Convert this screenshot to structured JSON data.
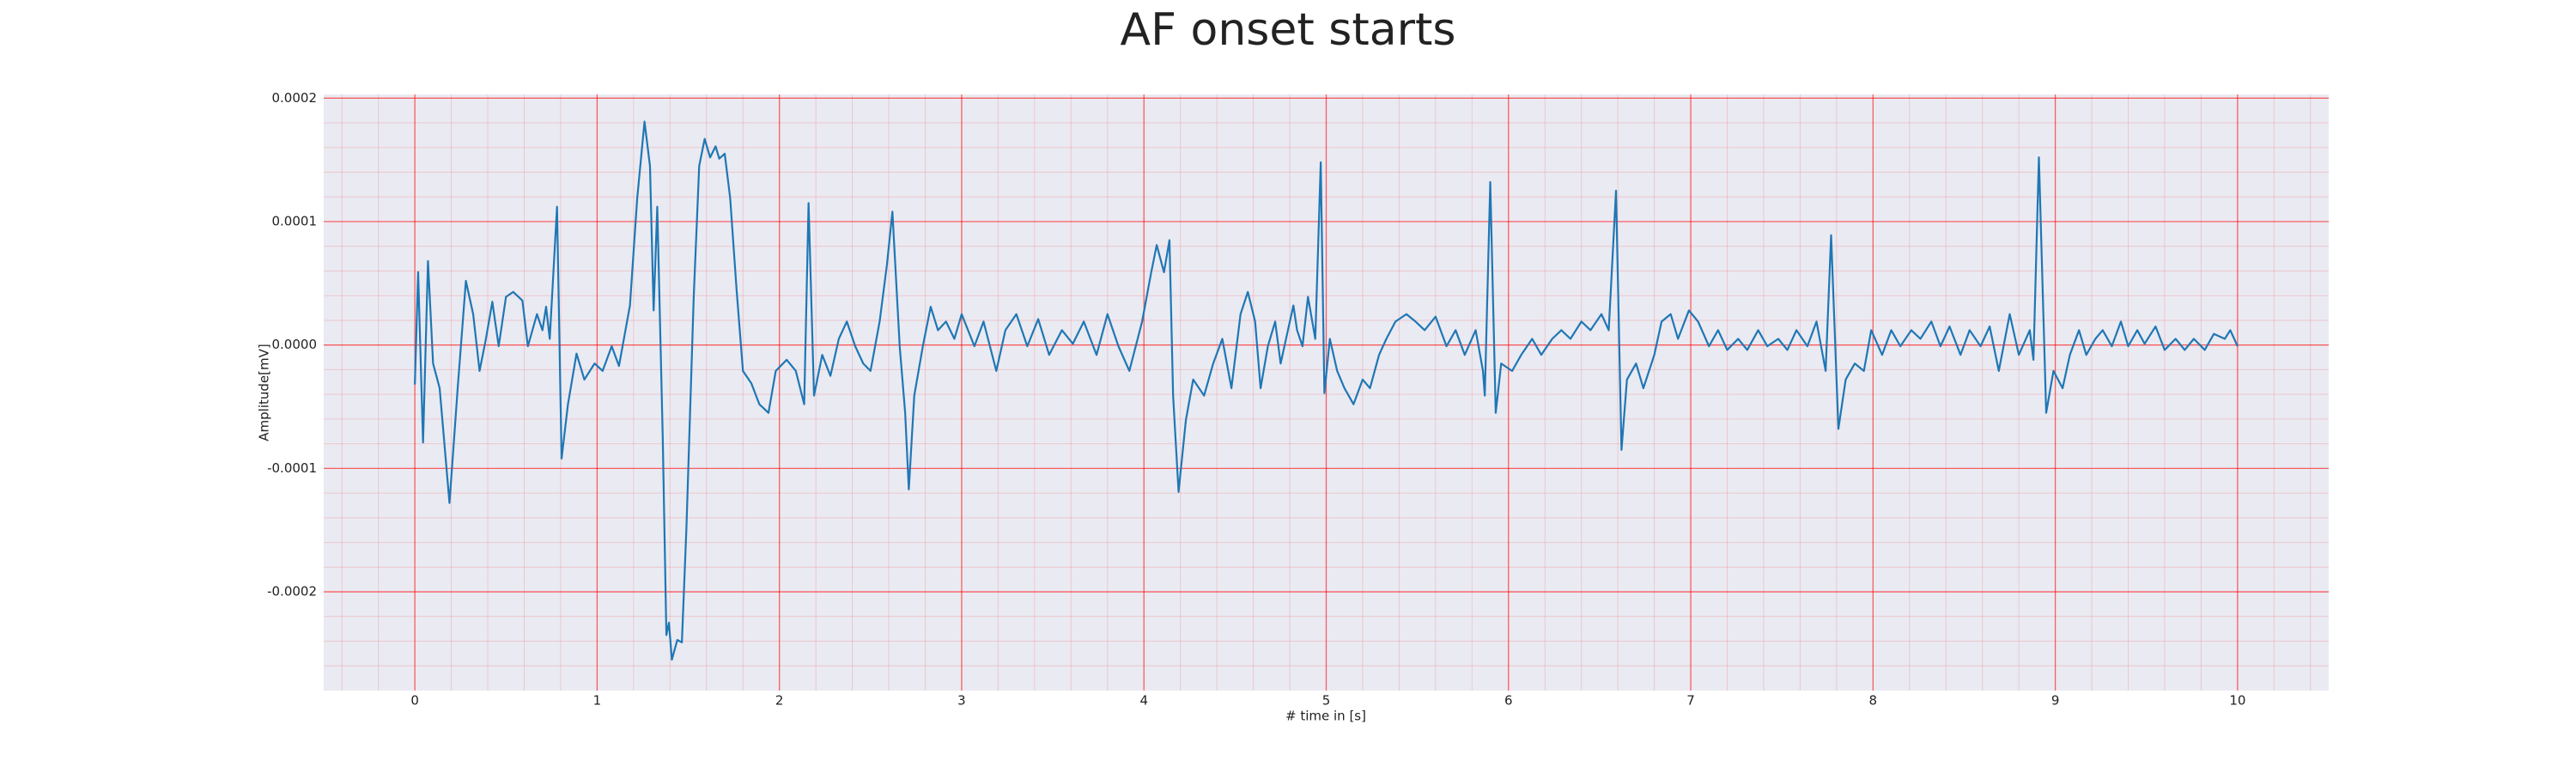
{
  "chart_data": {
    "type": "line",
    "title": "AF onset starts",
    "xlabel": "# time in [s]",
    "ylabel": "Amplitude[mV]",
    "x": [
      0,
      0.018,
      0.045,
      0.072,
      0.1,
      0.136,
      0.19,
      0.235,
      0.28,
      0.32,
      0.355,
      0.39,
      0.425,
      0.46,
      0.5,
      0.54,
      0.59,
      0.62,
      0.67,
      0.7,
      0.72,
      0.74,
      0.78,
      0.805,
      0.84,
      0.887,
      0.93,
      0.986,
      1.03,
      1.08,
      1.12,
      1.18,
      1.22,
      1.26,
      1.29,
      1.31,
      1.33,
      1.36,
      1.38,
      1.394,
      1.41,
      1.44,
      1.465,
      1.49,
      1.53,
      1.56,
      1.59,
      1.62,
      1.65,
      1.67,
      1.7,
      1.73,
      1.765,
      1.8,
      1.846,
      1.89,
      1.94,
      1.98,
      2.04,
      2.09,
      2.136,
      2.16,
      2.19,
      2.235,
      2.28,
      2.326,
      2.37,
      2.416,
      2.46,
      2.5,
      2.55,
      2.59,
      2.62,
      2.66,
      2.69,
      2.71,
      2.74,
      2.787,
      2.83,
      2.87,
      2.914,
      2.96,
      3.0,
      3.07,
      3.12,
      3.19,
      3.24,
      3.3,
      3.36,
      3.42,
      3.48,
      3.55,
      3.61,
      3.67,
      3.74,
      3.8,
      3.86,
      3.92,
      3.99,
      4.04,
      4.07,
      4.11,
      4.14,
      4.16,
      4.19,
      4.23,
      4.27,
      4.33,
      4.38,
      4.43,
      4.48,
      4.53,
      4.57,
      4.61,
      4.64,
      4.68,
      4.72,
      4.75,
      4.79,
      4.82,
      4.84,
      4.87,
      4.9,
      4.94,
      4.97,
      4.99,
      5.02,
      5.06,
      5.1,
      5.15,
      5.2,
      5.24,
      5.29,
      5.33,
      5.38,
      5.44,
      5.49,
      5.54,
      5.6,
      5.66,
      5.71,
      5.76,
      5.82,
      5.86,
      5.87,
      5.9,
      5.93,
      5.96,
      6.02,
      6.07,
      6.13,
      6.18,
      6.24,
      6.29,
      6.34,
      6.4,
      6.45,
      6.51,
      6.55,
      6.59,
      6.62,
      6.65,
      6.7,
      6.74,
      6.8,
      6.84,
      6.89,
      6.93,
      6.99,
      7.04,
      7.1,
      7.15,
      7.2,
      7.26,
      7.31,
      7.37,
      7.42,
      7.48,
      7.53,
      7.58,
      7.64,
      7.69,
      7.74,
      7.77,
      7.81,
      7.85,
      7.9,
      7.95,
      7.99,
      8.05,
      8.1,
      8.15,
      8.21,
      8.26,
      8.32,
      8.37,
      8.42,
      8.48,
      8.53,
      8.59,
      8.64,
      8.69,
      8.75,
      8.8,
      8.86,
      8.88,
      8.91,
      8.95,
      8.99,
      9.04,
      9.08,
      9.13,
      9.17,
      9.22,
      9.26,
      9.31,
      9.36,
      9.4,
      9.45,
      9.49,
      9.55,
      9.6,
      9.66,
      9.71,
      9.76,
      9.82,
      9.87,
      9.93,
      9.96,
      10.0
    ],
    "series": [
      {
        "color": "#1f77b4",
        "values": [
          -3.2e-05,
          5.9e-05,
          -7.9e-05,
          6.8e-05,
          -1.5e-05,
          -3.5e-05,
          -0.000128,
          -3.5e-05,
          5.2e-05,
          2.5e-05,
          -2.1e-05,
          5e-06,
          3.5e-05,
          -1e-06,
          3.9e-05,
          4.3e-05,
          3.6e-05,
          -1e-06,
          2.5e-05,
          1.2e-05,
          3.1e-05,
          5e-06,
          0.000112,
          -9.2e-05,
          -4.8e-05,
          -7e-06,
          -2.8e-05,
          -1.5e-05,
          -2.1e-05,
          -1e-06,
          -1.7e-05,
          3.2e-05,
          0.000119,
          0.000181,
          0.000145,
          2.8e-05,
          0.000112,
          -7.5e-05,
          -0.000235,
          -0.000225,
          -0.000255,
          -0.000239,
          -0.000241,
          -0.000148,
          3.9e-05,
          0.000145,
          0.000167,
          0.000152,
          0.000161,
          0.000151,
          0.000155,
          0.000119,
          4.5e-05,
          -2.1e-05,
          -3.1e-05,
          -4.8e-05,
          -5.5e-05,
          -2.1e-05,
          -1.2e-05,
          -2.1e-05,
          -4.8e-05,
          0.000115,
          -4.1e-05,
          -8e-06,
          -2.5e-05,
          5e-06,
          1.9e-05,
          -1e-06,
          -1.5e-05,
          -2.1e-05,
          1.9e-05,
          6.5e-05,
          0.000108,
          -1e-06,
          -5.5e-05,
          -0.000117,
          -4.1e-05,
          -1e-06,
          3.1e-05,
          1.2e-05,
          1.9e-05,
          5e-06,
          2.5e-05,
          -1e-06,
          1.9e-05,
          -2.1e-05,
          1.2e-05,
          2.5e-05,
          -1e-06,
          2.1e-05,
          -8e-06,
          1.2e-05,
          1e-06,
          1.9e-05,
          -8e-06,
          2.5e-05,
          -1e-06,
          -2.1e-05,
          1.9e-05,
          5.9e-05,
          8.1e-05,
          5.9e-05,
          8.5e-05,
          -4.1e-05,
          -0.000119,
          -6.1e-05,
          -2.8e-05,
          -4.1e-05,
          -1.5e-05,
          5e-06,
          -3.5e-05,
          2.5e-05,
          4.3e-05,
          1.9e-05,
          -3.5e-05,
          -1e-06,
          1.9e-05,
          -1.5e-05,
          1.2e-05,
          3.2e-05,
          1.2e-05,
          -1e-06,
          3.9e-05,
          5e-06,
          0.000148,
          -3.9e-05,
          5e-06,
          -2.1e-05,
          -3.5e-05,
          -4.8e-05,
          -2.8e-05,
          -3.5e-05,
          -8e-06,
          5e-06,
          1.9e-05,
          2.5e-05,
          1.9e-05,
          1.2e-05,
          2.3e-05,
          -1e-06,
          1.2e-05,
          -8e-06,
          1.2e-05,
          -2.1e-05,
          -4.1e-05,
          0.000132,
          -5.5e-05,
          -1.5e-05,
          -2.1e-05,
          -8e-06,
          5e-06,
          -8e-06,
          5e-06,
          1.2e-05,
          5e-06,
          1.9e-05,
          1.2e-05,
          2.5e-05,
          1.2e-05,
          0.000125,
          -8.5e-05,
          -2.8e-05,
          -1.5e-05,
          -3.5e-05,
          -8e-06,
          1.9e-05,
          2.5e-05,
          5e-06,
          2.8e-05,
          1.9e-05,
          -1e-06,
          1.2e-05,
          -4e-06,
          5e-06,
          -4e-06,
          1.2e-05,
          -1e-06,
          5e-06,
          -4e-06,
          1.2e-05,
          -1e-06,
          1.9e-05,
          -2.1e-05,
          8.9e-05,
          -6.8e-05,
          -2.8e-05,
          -1.5e-05,
          -2.1e-05,
          1.2e-05,
          -8e-06,
          1.2e-05,
          -1e-06,
          1.2e-05,
          5e-06,
          1.9e-05,
          -1e-06,
          1.5e-05,
          -8e-06,
          1.2e-05,
          -1e-06,
          1.5e-05,
          -2.1e-05,
          2.5e-05,
          -8e-06,
          1.2e-05,
          -1.2e-05,
          0.000152,
          -5.5e-05,
          -2.1e-05,
          -3.5e-05,
          -8e-06,
          1.2e-05,
          -8e-06,
          5e-06,
          1.2e-05,
          -1e-06,
          1.9e-05,
          -1e-06,
          1.2e-05,
          1e-06,
          1.5e-05,
          -4e-06,
          5e-06,
          -4e-06,
          5e-06,
          -4e-06,
          9e-06,
          5e-06,
          1.2e-05,
          -1e-06
        ]
      }
    ],
    "xlim": [
      -0.5,
      10.5
    ],
    "xticks": [
      0,
      1,
      2,
      3,
      4,
      5,
      6,
      7,
      8,
      9,
      10
    ],
    "ylim": [
      -0.00028,
      0.000203
    ],
    "yticks": [
      -0.0002,
      -0.0001,
      {
        "value": 0,
        "label": "0.0000"
      },
      0.0001,
      0.0002
    ],
    "grid": true,
    "grid_color": "#ff0000",
    "minor_grid": true
  }
}
